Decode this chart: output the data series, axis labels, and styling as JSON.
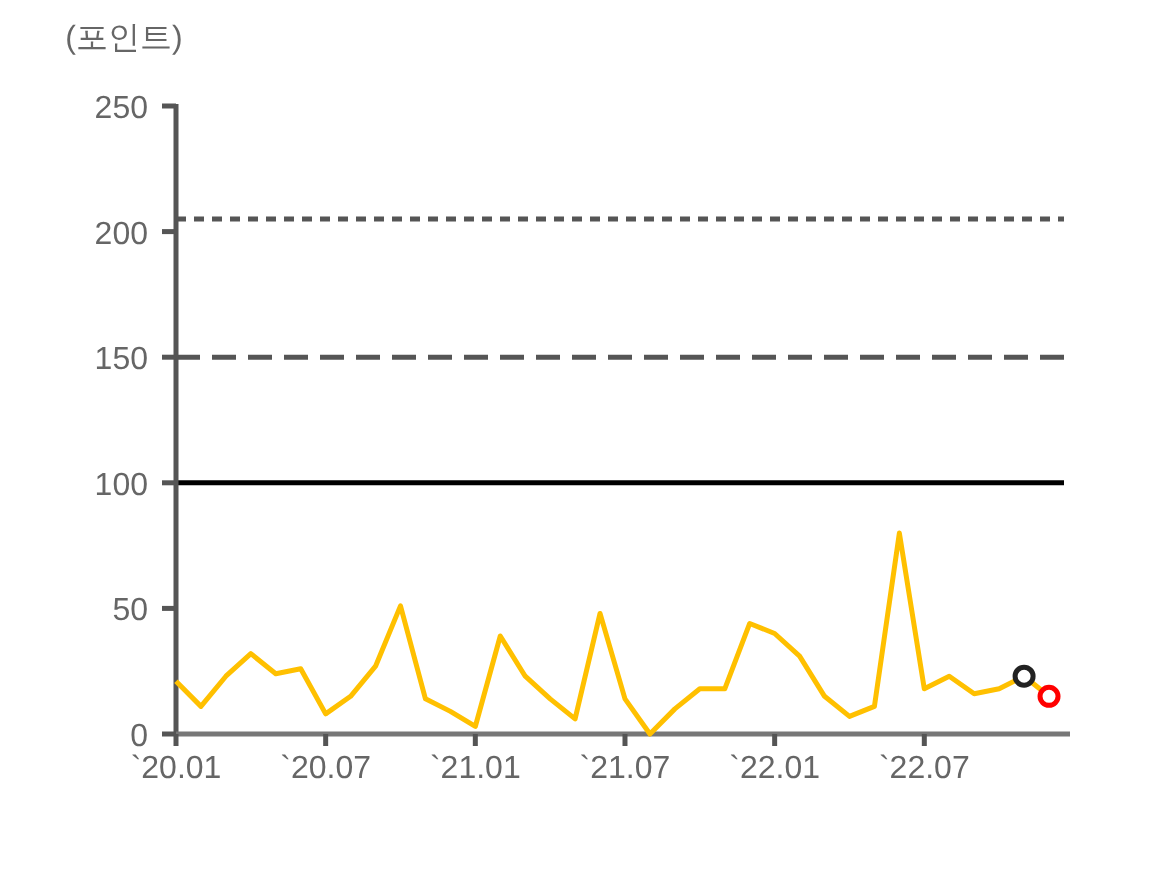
{
  "chart_data": {
    "type": "line",
    "ylabel": "(포인트)",
    "categories": [
      "`20.01",
      null,
      null,
      null,
      null,
      null,
      "`20.07",
      null,
      null,
      null,
      null,
      null,
      "`21.01",
      null,
      null,
      null,
      null,
      null,
      "`21.07",
      null,
      null,
      null,
      null,
      null,
      "`22.01",
      null,
      null,
      null,
      null,
      null,
      "`22.07",
      null,
      null,
      null,
      null,
      null
    ],
    "series": [
      {
        "color": "#ffc000",
        "values": [
          21,
          11,
          23,
          32,
          24,
          26,
          8,
          15,
          27,
          51,
          14,
          9,
          3,
          39,
          23,
          14,
          6,
          48,
          14,
          0,
          10,
          18,
          18,
          44,
          40,
          31,
          15,
          7,
          11,
          80,
          18,
          23,
          16,
          18,
          23,
          15
        ]
      },
      {
        "type": "scatter",
        "marker": "circle",
        "color": "#222222",
        "values": [
          null,
          null,
          null,
          null,
          null,
          null,
          null,
          null,
          null,
          null,
          null,
          null,
          null,
          null,
          null,
          null,
          null,
          null,
          null,
          null,
          null,
          null,
          null,
          null,
          null,
          null,
          null,
          null,
          null,
          null,
          null,
          null,
          null,
          null,
          23,
          null
        ]
      },
      {
        "type": "scatter",
        "marker": "circle",
        "color": "#ff0000",
        "values": [
          null,
          null,
          null,
          null,
          null,
          null,
          null,
          null,
          null,
          null,
          null,
          null,
          null,
          null,
          null,
          null,
          null,
          null,
          null,
          null,
          null,
          null,
          null,
          null,
          null,
          null,
          null,
          null,
          null,
          null,
          null,
          null,
          null,
          null,
          null,
          15
        ]
      }
    ],
    "ylim": [
      0,
      250
    ],
    "yticks": [
      0,
      50,
      100,
      150,
      200,
      250
    ],
    "grid": false,
    "ref_lines": [
      {
        "axis": "y",
        "value": 100,
        "color": "#000000",
        "line_style": "solid"
      },
      {
        "axis": "y",
        "value": 150,
        "color": "#555555",
        "line_style": "dashed"
      },
      {
        "axis": "y",
        "value": 205,
        "color": "#555555",
        "line_style": "dotted"
      }
    ]
  }
}
